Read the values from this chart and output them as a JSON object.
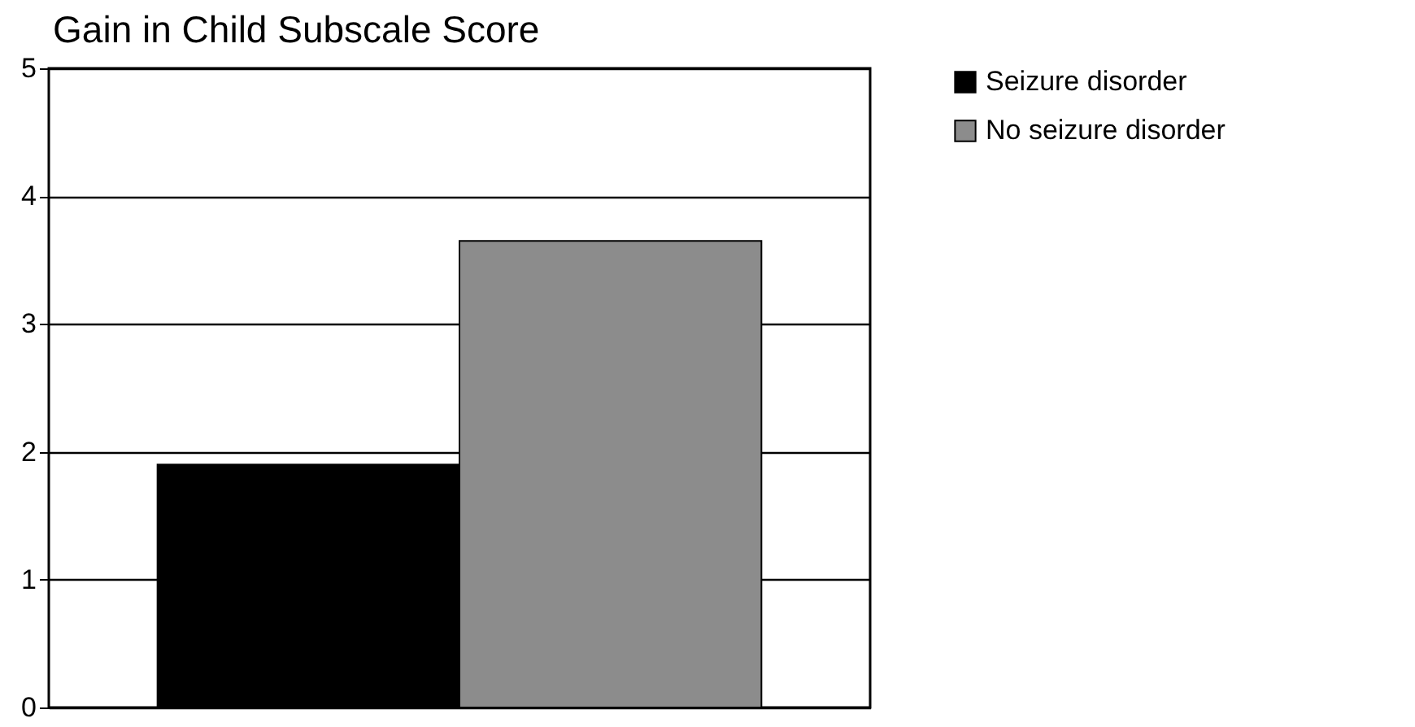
{
  "chart_data": {
    "type": "bar",
    "title": "Gain in Child Subscale Score",
    "categories": [
      null
    ],
    "series": [
      {
        "name": "Seizure disorder",
        "color": "#000000",
        "values": [
          1.9
        ]
      },
      {
        "name": "No seizure disorder",
        "color": "#8c8c8c",
        "values": [
          3.65
        ]
      }
    ],
    "ylim": [
      0,
      5
    ],
    "yticks": [
      0,
      1,
      2,
      3,
      4,
      5
    ],
    "grid": "y",
    "legend": "top right"
  }
}
